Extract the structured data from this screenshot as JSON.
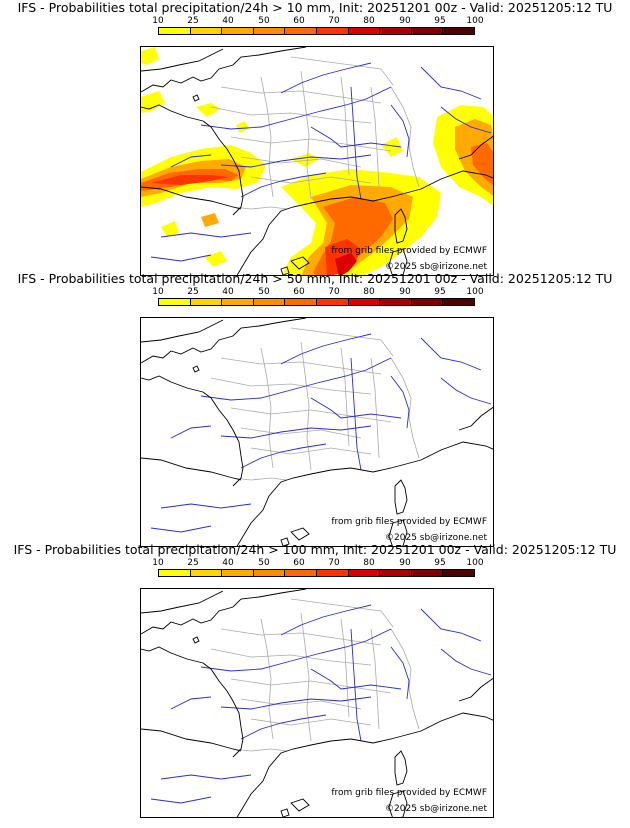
{
  "colors": {
    "scale": [
      "#ffff00",
      "#ffd400",
      "#ffaa00",
      "#ff8c00",
      "#ff6a00",
      "#ff3300",
      "#dd0000",
      "#aa0000",
      "#800000",
      "#500000"
    ],
    "coast": "#000000",
    "rivers": "#2a2ad8",
    "borders": "#aaaaaa"
  },
  "colorbar_labels": [
    "10",
    "25",
    "40",
    "50",
    "60",
    "70",
    "80",
    "90",
    "95",
    "100"
  ],
  "credit_source": "from grib files provided by ECMWF",
  "credit_copyright": "©2025 sb@irizone.net",
  "panels": [
    {
      "title": "IFS - Probabilities total precipitation/24h > 10 mm, Init: 20251201 00z - Valid: 20251205:12 TU",
      "threshold_mm": 10,
      "has_precip": true
    },
    {
      "title": "IFS - Probabilities total precipitation/24h > 50 mm, Init: 20251201 00z - Valid: 20251205:12 TU",
      "threshold_mm": 50,
      "has_precip": false
    },
    {
      "title": "IFS - Probabilities total precipitation/24h > 100 mm, Init: 20251201 00z - Valid: 20251205:12 TU",
      "threshold_mm": 100,
      "has_precip": false
    }
  ]
}
